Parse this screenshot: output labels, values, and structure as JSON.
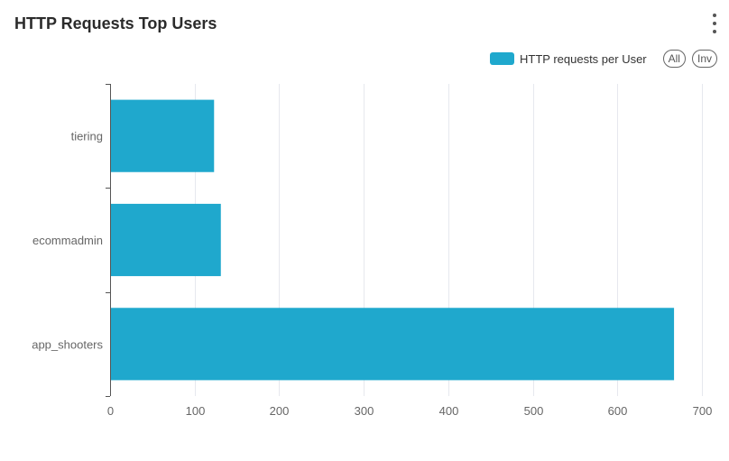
{
  "header": {
    "title": "HTTP Requests Top Users"
  },
  "controls": {
    "all_label": "All",
    "inv_label": "Inv"
  },
  "colors": {
    "bar": "#1fa8cd",
    "grid": "#e6e8ee",
    "axis": "#555555"
  },
  "icons": {
    "menu": "kebab-menu-icon"
  },
  "chart_data": {
    "type": "bar",
    "orientation": "horizontal",
    "title": "HTTP Requests Top Users",
    "categories": [
      "tiering",
      "ecommadmin",
      "app_shooters"
    ],
    "series": [
      {
        "name": "HTTP requests per User",
        "values": [
          123,
          131,
          667
        ]
      }
    ],
    "xlim": [
      0,
      700
    ],
    "xticks": [
      0,
      100,
      200,
      300,
      400,
      500,
      600,
      700
    ],
    "xlabel": "",
    "ylabel": "",
    "grid": "vertical",
    "legend": "top-right"
  }
}
